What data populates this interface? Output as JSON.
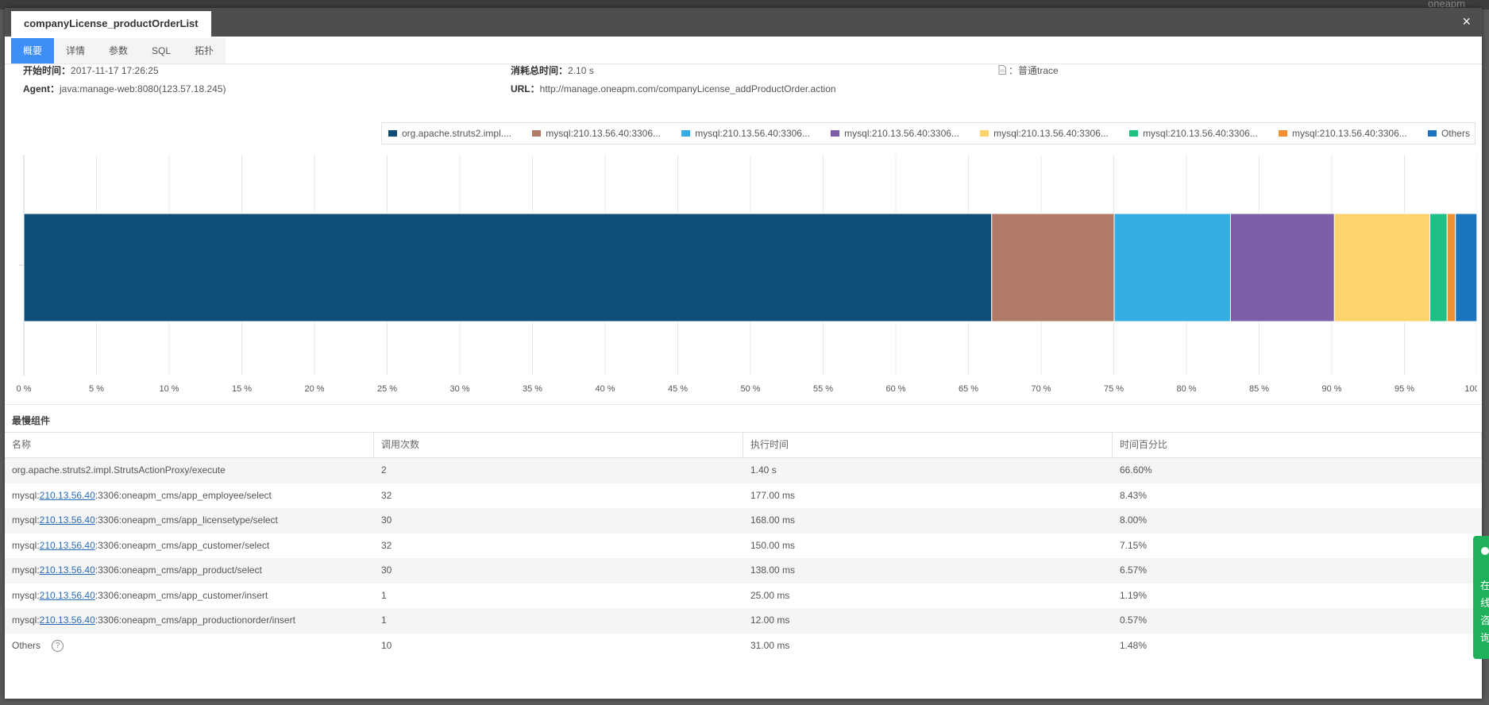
{
  "background": {
    "right_text": "oneapm"
  },
  "modal": {
    "title": "companyLicense_productOrderList",
    "close_icon": "×"
  },
  "tabs": [
    {
      "label": "概要",
      "active": true
    },
    {
      "label": "详情",
      "active": false
    },
    {
      "label": "参数",
      "active": false
    },
    {
      "label": "SQL",
      "active": false
    },
    {
      "label": "拓扑",
      "active": false
    }
  ],
  "info": {
    "start_label": "开始时间：",
    "start_value": "2017-11-17 17:26:25",
    "duration_label": "消耗总时间：",
    "duration_value": "2.10 s",
    "trace_type": "：普通trace",
    "agent_label": "Agent：",
    "agent_value": "java:manage-web:8080(123.57.18.245)",
    "url_label": "URL：",
    "url_value": "http://manage.oneapm.com/companyLicense_addProductOrder.action"
  },
  "chart_data": {
    "type": "bar",
    "orientation": "horizontal-stacked",
    "categories": [
      ""
    ],
    "series": [
      {
        "name": "org.apache.struts2.impl....",
        "values": [
          66.6
        ],
        "color": "#0e4e78"
      },
      {
        "name": "mysql:210.13.56.40:3306...",
        "values": [
          8.43
        ],
        "color": "#b07a66"
      },
      {
        "name": "mysql:210.13.56.40:3306...",
        "values": [
          8.0
        ],
        "color": "#34aee2"
      },
      {
        "name": "mysql:210.13.56.40:3306...",
        "values": [
          7.15
        ],
        "color": "#7c5ea9"
      },
      {
        "name": "mysql:210.13.56.40:3306...",
        "values": [
          6.57
        ],
        "color": "#fdd36b"
      },
      {
        "name": "mysql:210.13.56.40:3306...",
        "values": [
          1.19
        ],
        "color": "#1fc083"
      },
      {
        "name": "mysql:210.13.56.40:3306...",
        "values": [
          0.57
        ],
        "color": "#ef9033"
      },
      {
        "name": "Others",
        "values": [
          1.48
        ],
        "color": "#1a74be"
      }
    ],
    "xlim": [
      0,
      100
    ],
    "x_ticks": [
      "0 %",
      "5 %",
      "10 %",
      "15 %",
      "20 %",
      "25 %",
      "30 %",
      "35 %",
      "40 %",
      "45 %",
      "50 %",
      "55 %",
      "60 %",
      "65 %",
      "70 %",
      "75 %",
      "80 %",
      "85 %",
      "90 %",
      "95 %",
      "100 %"
    ],
    "grid": true,
    "legend": "top-right"
  },
  "slowest": {
    "title": "最慢组件",
    "headers": [
      "名称",
      "调用次数",
      "执行时间",
      "时间百分比"
    ],
    "rows": [
      {
        "prefix": "org.apache.struts2.impl.StrutsActionProxy/execute",
        "link": "",
        "suffix": "",
        "calls": "2",
        "time": "1.40 s",
        "percent": "66.60%"
      },
      {
        "prefix": "mysql:",
        "link": "210.13.56.40",
        "suffix": ":3306:oneapm_cms/app_employee/select",
        "calls": "32",
        "time": "177.00 ms",
        "percent": "8.43%"
      },
      {
        "prefix": "mysql:",
        "link": "210.13.56.40",
        "suffix": ":3306:oneapm_cms/app_licensetype/select",
        "calls": "30",
        "time": "168.00 ms",
        "percent": "8.00%"
      },
      {
        "prefix": "mysql:",
        "link": "210.13.56.40",
        "suffix": ":3306:oneapm_cms/app_customer/select",
        "calls": "32",
        "time": "150.00 ms",
        "percent": "7.15%"
      },
      {
        "prefix": "mysql:",
        "link": "210.13.56.40",
        "suffix": ":3306:oneapm_cms/app_product/select",
        "calls": "30",
        "time": "138.00 ms",
        "percent": "6.57%"
      },
      {
        "prefix": "mysql:",
        "link": "210.13.56.40",
        "suffix": ":3306:oneapm_cms/app_customer/insert",
        "calls": "1",
        "time": "25.00 ms",
        "percent": "1.19%"
      },
      {
        "prefix": "mysql:",
        "link": "210.13.56.40",
        "suffix": ":3306:oneapm_cms/app_productionorder/insert",
        "calls": "1",
        "time": "12.00 ms",
        "percent": "0.57%"
      },
      {
        "prefix": "Others",
        "link": "",
        "suffix": "",
        "calls": "10",
        "time": "31.00 ms",
        "percent": "1.48%",
        "help": "?"
      }
    ]
  },
  "side_widget": {
    "text": "在线咨询"
  }
}
